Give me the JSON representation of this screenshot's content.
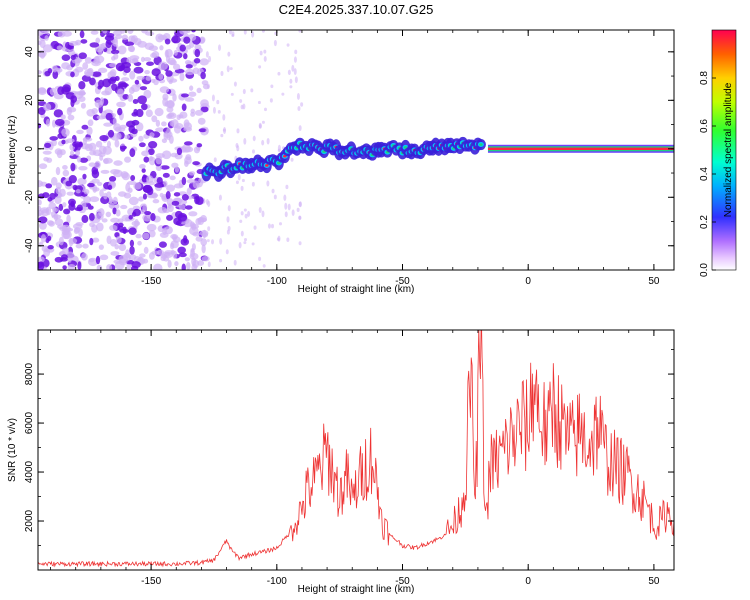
{
  "title": "C2E4.2025.337.10.07.G25",
  "colors": {
    "snr_line": "#ee3333",
    "scatter_cool": "#6a10e0",
    "scatter_light": "#cfb0f5",
    "band_hot": "#ff2244",
    "band_core": "#20d080"
  },
  "chart_data": [
    {
      "type": "heatmap",
      "title": "C2E4.2025.337.10.07.G25",
      "xlabel": "Height of straight line (km)",
      "ylabel": "Frequency (Hz)",
      "xlim": [
        -195,
        58
      ],
      "ylim": [
        -50,
        49
      ],
      "x_ticks": [
        -150,
        -100,
        -50,
        0,
        50
      ],
      "x_tick_labels": [
        "-150",
        "-100",
        "-50",
        "0",
        "50"
      ],
      "y_ticks": [
        -40,
        -20,
        0,
        20,
        40
      ],
      "y_tick_labels": [
        "-40",
        "-20",
        "0",
        "20",
        "40"
      ],
      "grid": false,
      "ridge": {
        "x": [
          -128,
          -115,
          -100,
          -90,
          -80,
          -70,
          -62,
          -55,
          -45,
          -30,
          -20,
          -10,
          0,
          20,
          40,
          58
        ],
        "freq": [
          -10,
          -7,
          -5,
          2,
          0,
          -1,
          -2,
          0,
          -1,
          1,
          2,
          1,
          0,
          0,
          0,
          0
        ]
      },
      "colorbar": {
        "label": "Normalized spectral amplitude",
        "range": [
          0,
          1
        ],
        "ticks": [
          0.0,
          0.2,
          0.4,
          0.6,
          0.8
        ],
        "tick_labels": [
          "0.0",
          "0.2",
          "0.4",
          "0.6",
          "0.8"
        ],
        "colormap": "rainbow"
      }
    },
    {
      "type": "line",
      "xlabel": "Height of straight line (km)",
      "ylabel": "SNR (10 * v/v)",
      "xlim": [
        -195,
        58
      ],
      "ylim": [
        0,
        9800
      ],
      "x_ticks": [
        -150,
        -100,
        -50,
        0,
        50
      ],
      "x_tick_labels": [
        "-150",
        "-100",
        "-50",
        "0",
        "50"
      ],
      "y_ticks": [
        2000,
        4000,
        6000,
        8000
      ],
      "y_tick_labels": [
        "2000",
        "4000",
        "6000",
        "8000"
      ],
      "grid": false,
      "series": [
        {
          "x": [
            -195,
            -180,
            -160,
            -140,
            -130,
            -125,
            -120,
            -118,
            -115,
            -110,
            -105,
            -100,
            -95,
            -90,
            -88,
            -85,
            -80,
            -75,
            -72,
            -70,
            -68,
            -65,
            -62,
            -60,
            -58,
            -55,
            -52,
            -50,
            -45,
            -40,
            -35,
            -30,
            -27,
            -25,
            -23,
            -21,
            -19,
            -17,
            -15,
            -12,
            -10,
            -8,
            -5,
            -2,
            0,
            2,
            5,
            8,
            10,
            12,
            15,
            18,
            20,
            22,
            25,
            28,
            30,
            35,
            40,
            45,
            48,
            50,
            53,
            55,
            58
          ],
          "y": [
            250,
            250,
            250,
            250,
            300,
            400,
            1200,
            800,
            500,
            650,
            750,
            900,
            1500,
            2500,
            3200,
            3600,
            4800,
            3000,
            3800,
            2800,
            3500,
            4200,
            4700,
            3200,
            2000,
            1400,
            1200,
            1000,
            900,
            1100,
            1300,
            1800,
            2500,
            3500,
            8000,
            2800,
            9800,
            2000,
            4200,
            4500,
            4800,
            5200,
            5500,
            6000,
            5700,
            7700,
            6200,
            5500,
            6900,
            6200,
            5400,
            5200,
            5600,
            5400,
            5200,
            6000,
            4800,
            4200,
            3800,
            3000,
            2500,
            1800,
            2000,
            2400,
            2100
          ]
        }
      ]
    }
  ]
}
